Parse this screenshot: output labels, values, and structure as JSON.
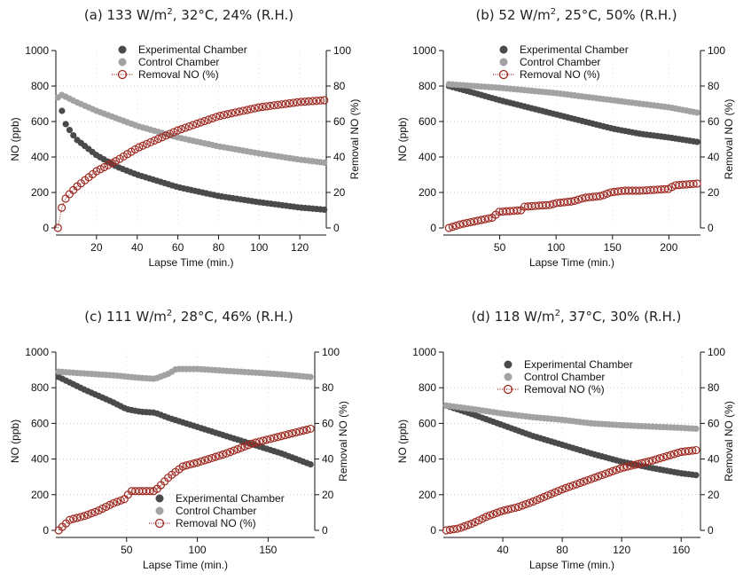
{
  "chart_data": [
    {
      "type": "scatter",
      "title": "(a) 133 W/m², 32°C, 24% (R.H.)",
      "title_main": "(a) 133 W/m",
      "title_sup": "2",
      "title_rest": ", 32°C, 24% (R.H.)",
      "xlabel": "Lapse Time (min.)",
      "ylabel": "NO (ppb)",
      "y2label": "Removal NO (%)",
      "xlim": [
        0,
        133
      ],
      "ylim": [
        0,
        1000
      ],
      "y2lim": [
        0,
        100
      ],
      "xticks": [
        "20",
        "40",
        "60",
        "80",
        "100",
        "120"
      ],
      "xtick_values": [
        20,
        40,
        60,
        80,
        100,
        120
      ],
      "yticks": [
        "0",
        "200",
        "400",
        "600",
        "800",
        "1000"
      ],
      "y2ticks": [
        "0",
        "20",
        "40",
        "60",
        "80",
        "100"
      ],
      "legend_position": "top-center",
      "series": [
        {
          "name": "Experimental Chamber",
          "axis": "left",
          "color": "#4a4a4a",
          "x": [
            3,
            5,
            10,
            20,
            30,
            40,
            60,
            80,
            100,
            120,
            132
          ],
          "y": [
            660,
            580,
            500,
            410,
            345,
            300,
            230,
            180,
            145,
            115,
            103
          ]
        },
        {
          "name": "Control Chamber",
          "axis": "left",
          "color": "#a2a2a2",
          "x": [
            1,
            3,
            10,
            20,
            40,
            60,
            80,
            100,
            120,
            132
          ],
          "y": [
            735,
            750,
            710,
            660,
            575,
            510,
            460,
            420,
            385,
            368
          ]
        },
        {
          "name": "Removal NO (%)",
          "axis": "right",
          "color": "#9e2a22",
          "x": [
            1,
            3,
            5,
            10,
            20,
            30,
            40,
            60,
            80,
            100,
            120,
            132
          ],
          "y": [
            0,
            12,
            17,
            23,
            32,
            38,
            45,
            55,
            63,
            68,
            71,
            72
          ]
        }
      ]
    },
    {
      "type": "scatter",
      "title": "(b) 52 W/m², 25°C, 50% (R.H.)",
      "title_main": "(b) 52 W/m",
      "title_sup": "2",
      "title_rest": ", 25°C, 50% (R.H.)",
      "xlabel": "Lapse Time (min.)",
      "ylabel": "NO (ppb)",
      "y2label": "Removal NO (%)",
      "xlim": [
        0,
        228
      ],
      "ylim": [
        0,
        1000
      ],
      "y2lim": [
        0,
        100
      ],
      "xticks": [
        "50",
        "100",
        "150",
        "200"
      ],
      "xtick_values": [
        50,
        100,
        150,
        200
      ],
      "yticks": [
        "0",
        "200",
        "400",
        "600",
        "800",
        "1000"
      ],
      "y2ticks": [
        "0",
        "20",
        "40",
        "60",
        "80",
        "100"
      ],
      "legend_position": "top-center",
      "series": [
        {
          "name": "Experimental Chamber",
          "axis": "left",
          "color": "#4a4a4a",
          "x": [
            5,
            25,
            50,
            75,
            100,
            125,
            150,
            175,
            200,
            225
          ],
          "y": [
            800,
            765,
            720,
            680,
            640,
            600,
            560,
            530,
            510,
            485
          ]
        },
        {
          "name": "Control Chamber",
          "axis": "left",
          "color": "#a2a2a2",
          "x": [
            5,
            50,
            100,
            150,
            200,
            225
          ],
          "y": [
            810,
            790,
            760,
            720,
            680,
            650
          ]
        },
        {
          "name": "Removal NO (%)",
          "axis": "right",
          "color": "#9e2a22",
          "x": [
            5,
            15,
            30,
            45,
            48,
            70,
            72,
            95,
            100,
            115,
            125,
            140,
            148,
            160,
            175,
            200,
            205,
            225
          ],
          "y": [
            0,
            2,
            4,
            6,
            9,
            10,
            12,
            13,
            14,
            15,
            17,
            18,
            20,
            21,
            21,
            22,
            24,
            25
          ]
        }
      ]
    },
    {
      "type": "scatter",
      "title": "(c) 111 W/m², 28°C, 46% (R.H.)",
      "title_main": "(c) 111 W/m",
      "title_sup": "2",
      "title_rest": ", 28°C, 46% (R.H.)",
      "xlabel": "Lapse Time (min.)",
      "ylabel": "NO (ppb)",
      "y2label": "Removal NO (%)",
      "xlim": [
        0,
        183
      ],
      "ylim": [
        0,
        1000
      ],
      "y2lim": [
        0,
        100
      ],
      "xticks": [
        "50",
        "100",
        "150"
      ],
      "xtick_values": [
        50,
        100,
        150
      ],
      "yticks": [
        "0",
        "200",
        "400",
        "600",
        "800",
        "1000"
      ],
      "y2ticks": [
        "0",
        "20",
        "40",
        "60",
        "80",
        "100"
      ],
      "legend_position": "bottom-center",
      "series": [
        {
          "name": "Experimental Chamber",
          "axis": "left",
          "color": "#4a4a4a",
          "x": [
            2,
            20,
            40,
            50,
            60,
            70,
            80,
            100,
            120,
            140,
            160,
            180
          ],
          "y": [
            860,
            790,
            720,
            680,
            665,
            660,
            630,
            580,
            530,
            480,
            430,
            370
          ]
        },
        {
          "name": "Control Chamber",
          "axis": "left",
          "color": "#a2a2a2",
          "x": [
            2,
            20,
            40,
            60,
            70,
            80,
            85,
            100,
            120,
            140,
            160,
            180
          ],
          "y": [
            890,
            880,
            870,
            855,
            850,
            880,
            905,
            905,
            895,
            885,
            875,
            860
          ]
        },
        {
          "name": "Removal NO (%)",
          "axis": "right",
          "color": "#9e2a22",
          "x": [
            2,
            10,
            20,
            30,
            40,
            50,
            52,
            70,
            75,
            80,
            90,
            100,
            120,
            140,
            160,
            180
          ],
          "y": [
            0,
            6,
            8,
            11,
            15,
            18,
            22,
            22,
            26,
            30,
            36,
            38,
            43,
            49,
            53,
            57
          ]
        }
      ]
    },
    {
      "type": "scatter",
      "title": "(d) 118 W/m², 37°C, 30% (R.H.)",
      "title_main": "(d) 118 W/m",
      "title_sup": "2",
      "title_rest": ", 37°C, 30% (R.H.)",
      "xlabel": "Lapse Time (min.)",
      "ylabel": "NO (ppb)",
      "y2label": "Removal NO (%)",
      "xlim": [
        0,
        173
      ],
      "ylim": [
        0,
        1000
      ],
      "y2lim": [
        0,
        100
      ],
      "xticks": [
        "40",
        "80",
        "120",
        "160"
      ],
      "xtick_values": [
        40,
        80,
        120,
        160
      ],
      "yticks": [
        "0",
        "200",
        "400",
        "600",
        "800",
        "1000"
      ],
      "y2ticks": [
        "0",
        "20",
        "40",
        "60",
        "80",
        "100"
      ],
      "legend_position": "top-center",
      "series": [
        {
          "name": "Experimental Chamber",
          "axis": "left",
          "color": "#4a4a4a",
          "x": [
            2,
            20,
            40,
            60,
            80,
            100,
            120,
            140,
            160,
            170
          ],
          "y": [
            700,
            650,
            590,
            530,
            480,
            430,
            385,
            350,
            320,
            310
          ]
        },
        {
          "name": "Control Chamber",
          "axis": "left",
          "color": "#a2a2a2",
          "x": [
            2,
            20,
            40,
            60,
            80,
            100,
            120,
            140,
            160,
            170
          ],
          "y": [
            700,
            680,
            655,
            635,
            620,
            600,
            590,
            582,
            575,
            570
          ]
        },
        {
          "name": "Removal NO (%)",
          "axis": "right",
          "color": "#9e2a22",
          "x": [
            2,
            10,
            20,
            30,
            40,
            50,
            60,
            80,
            100,
            120,
            140,
            160,
            170
          ],
          "y": [
            0,
            1,
            4,
            8,
            11,
            13,
            16,
            23,
            29,
            35,
            39,
            44,
            45
          ]
        }
      ]
    }
  ]
}
